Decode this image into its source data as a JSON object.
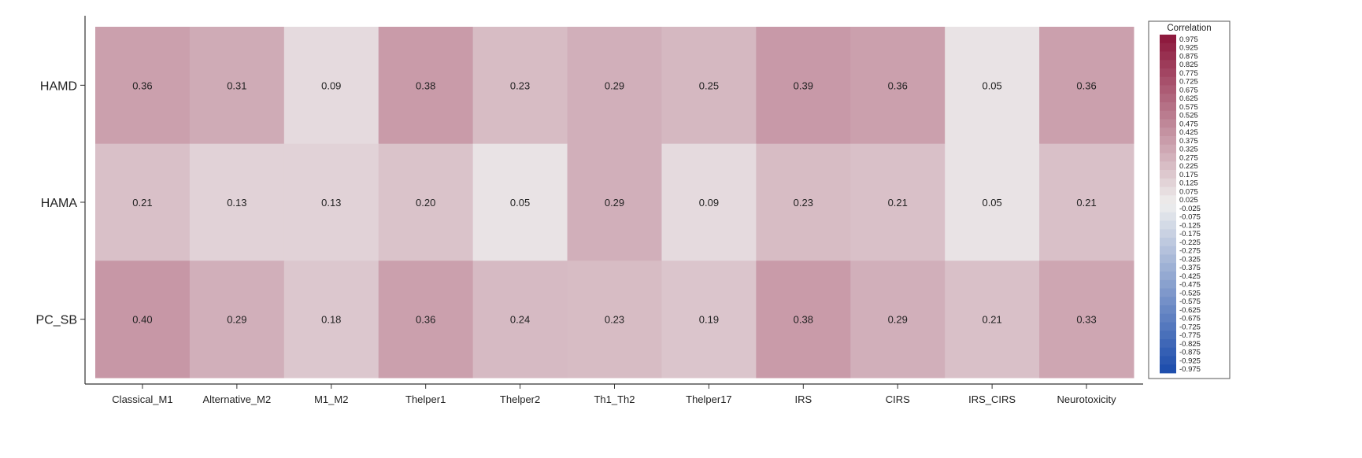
{
  "chart_data": {
    "type": "heatmap",
    "title": "",
    "xlabel": "",
    "ylabel": "",
    "x_categories": [
      "Classical_M1",
      "Alternative_M2",
      "M1_M2",
      "Thelper1",
      "Thelper2",
      "Th1_Th2",
      "Thelper17",
      "IRS",
      "CIRS",
      "IRS_CIRS",
      "Neurotoxicity"
    ],
    "y_categories": [
      "HAMD",
      "HAMA",
      "PC_SB"
    ],
    "values": [
      [
        0.36,
        0.31,
        0.09,
        0.38,
        0.23,
        0.29,
        0.25,
        0.39,
        0.36,
        0.05,
        0.36
      ],
      [
        0.21,
        0.13,
        0.13,
        0.2,
        0.05,
        0.29,
        0.09,
        0.23,
        0.21,
        0.05,
        0.21
      ],
      [
        0.4,
        0.29,
        0.18,
        0.36,
        0.24,
        0.23,
        0.19,
        0.38,
        0.29,
        0.21,
        0.33
      ]
    ],
    "value_labels": [
      [
        "0.36",
        "0.31",
        "0.09",
        "0.38",
        "0.23",
        "0.29",
        "0.25",
        "0.39",
        "0.36",
        "0.05",
        "0.36"
      ],
      [
        "0.21",
        "0.13",
        "0.13",
        "0.20",
        "0.05",
        "0.29",
        "0.09",
        "0.23",
        "0.21",
        "0.05",
        "0.21"
      ],
      [
        "0.40",
        "0.29",
        "0.18",
        "0.36",
        "0.24",
        "0.23",
        "0.19",
        "0.38",
        "0.29",
        "0.21",
        "0.33"
      ]
    ],
    "color_scale": {
      "range": [
        -0.975,
        0.975
      ],
      "negative_color": "#1f4fad",
      "mid_color": "#eeeeee",
      "positive_color": "#8e1a3e"
    },
    "legend": {
      "title": "Correlation",
      "position": "right",
      "ticks": [
        "0.975",
        "0.925",
        "0.875",
        "0.825",
        "0.775",
        "0.725",
        "0.675",
        "0.625",
        "0.575",
        "0.525",
        "0.475",
        "0.425",
        "0.375",
        "0.325",
        "0.275",
        "0.225",
        "0.175",
        "0.125",
        "0.075",
        "0.025",
        "-0.025",
        "-0.075",
        "-0.125",
        "-0.175",
        "-0.225",
        "-0.275",
        "-0.325",
        "-0.375",
        "-0.425",
        "-0.475",
        "-0.525",
        "-0.575",
        "-0.625",
        "-0.675",
        "-0.725",
        "-0.775",
        "-0.825",
        "-0.875",
        "-0.925",
        "-0.975"
      ]
    },
    "grid": false
  }
}
